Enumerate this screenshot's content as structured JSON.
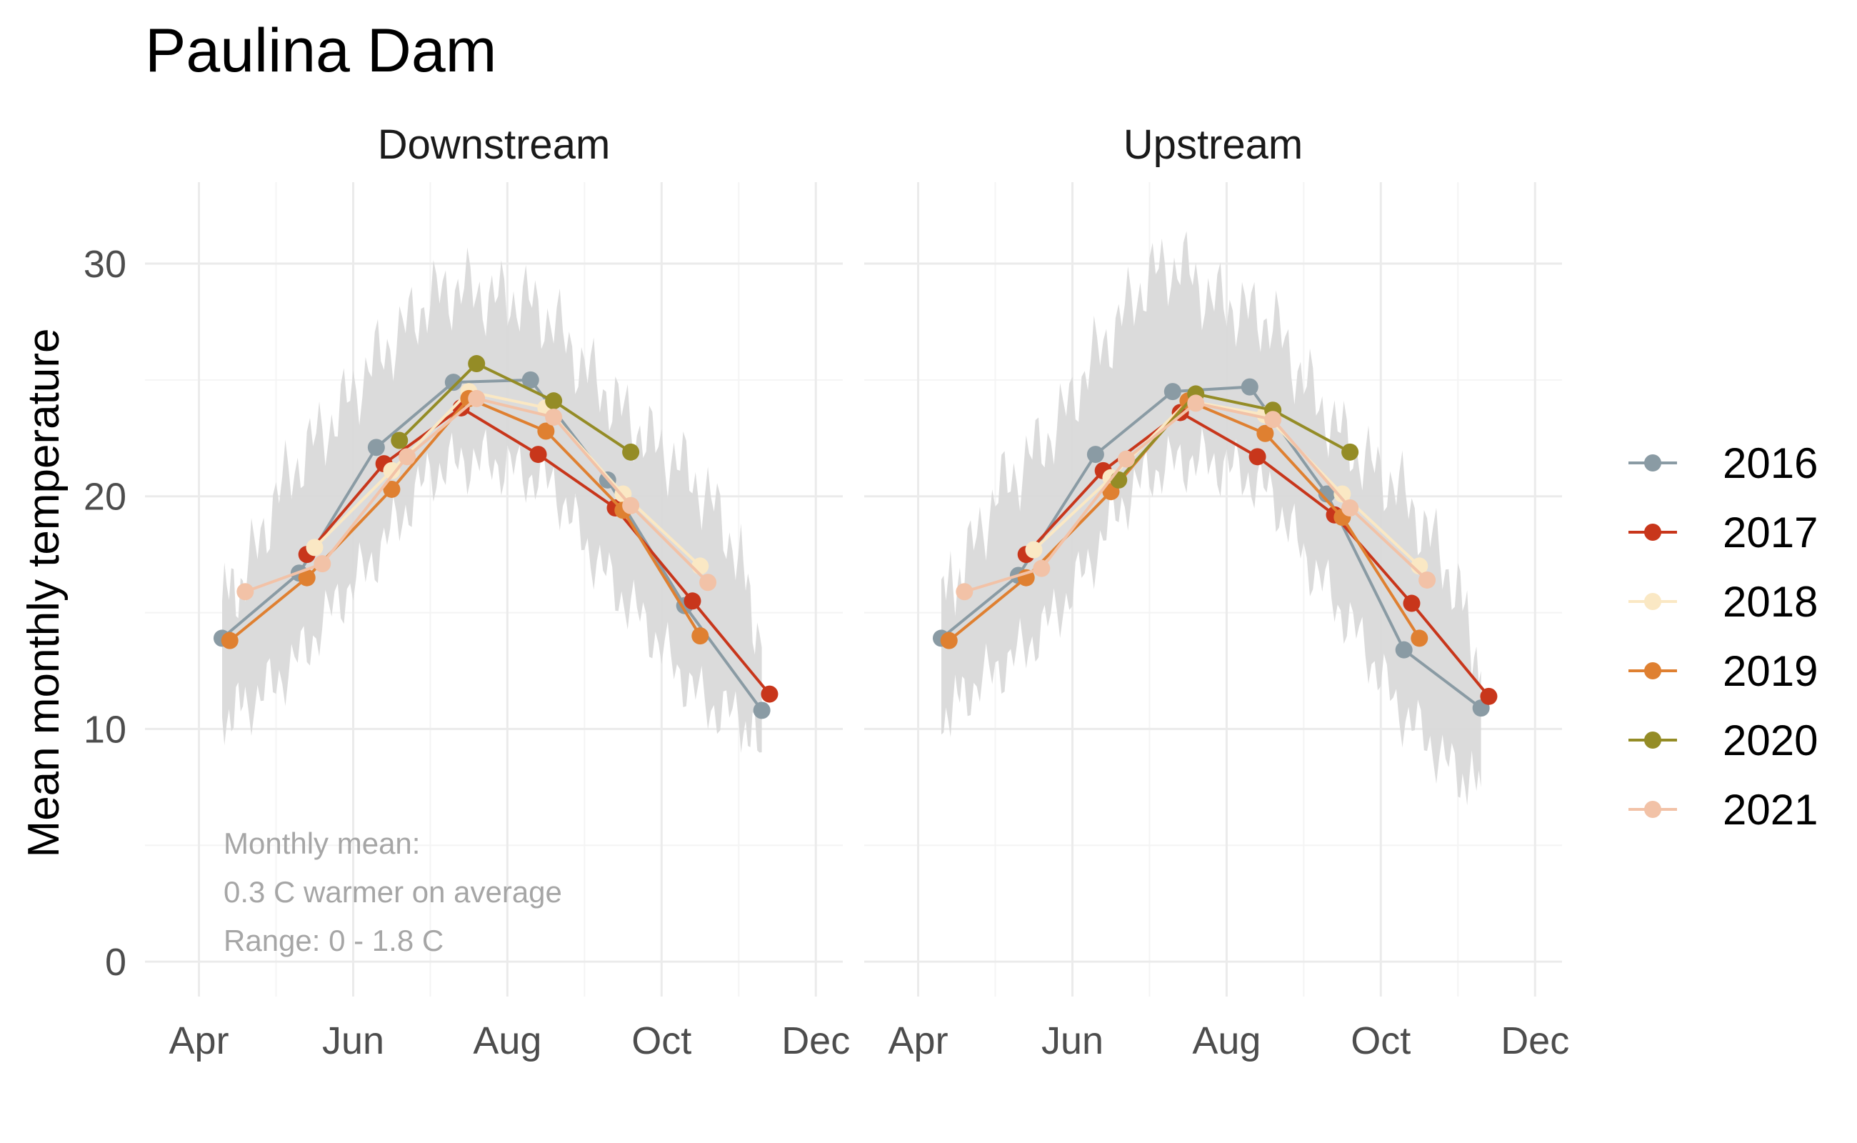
{
  "title": "Paulina Dam",
  "chart_data": {
    "type": "line",
    "title": "Paulina Dam",
    "ylabel": "Mean monthly temperature",
    "xlabel": "",
    "ylim": [
      -1.5,
      33.5
    ],
    "yticks": [
      0,
      10,
      20,
      30
    ],
    "xticks": [
      {
        "label": "Apr",
        "month": 4
      },
      {
        "label": "Jun",
        "month": 6
      },
      {
        "label": "Aug",
        "month": 8
      },
      {
        "label": "Oct",
        "month": 10
      },
      {
        "label": "Dec",
        "month": 12
      }
    ],
    "xlim_month": [
      3.3,
      12.35
    ],
    "legend": {
      "position": "right"
    },
    "colors": {
      "2016": "#8a9ba4",
      "2017": "#c8361b",
      "2018": "#fae8c4",
      "2019": "#df8031",
      "2020": "#948c26",
      "2021": "#f2c2a7"
    },
    "annotation": [
      "Monthly mean:",
      "0.3 C warmer on average",
      "Range: 0 - 1.8 C"
    ],
    "panels": [
      {
        "name": "Downstream",
        "ribbon": {
          "x": [
            4.3,
            4.6,
            5.0,
            5.4,
            5.8,
            6.2,
            6.6,
            7.0,
            7.4,
            7.8,
            8.2,
            8.6,
            9.0,
            9.4,
            9.8,
            10.2,
            10.6,
            11.0,
            11.3
          ],
          "lower": [
            10.5,
            11.0,
            12.0,
            13.5,
            15.5,
            17.0,
            19.0,
            21.0,
            21.5,
            21.5,
            21.0,
            20.5,
            18.0,
            16.0,
            14.5,
            12.5,
            11.0,
            10.5,
            9.0
          ],
          "upper": [
            15.5,
            16.5,
            20.0,
            22.0,
            23.5,
            25.5,
            27.0,
            28.5,
            29.0,
            28.5,
            28.5,
            27.5,
            25.5,
            24.0,
            22.5,
            21.5,
            20.0,
            17.5,
            13.5
          ]
        },
        "series": [
          {
            "name": "2016",
            "x": [
              4.3,
              5.3,
              6.3,
              7.3,
              8.3,
              9.3,
              10.3,
              11.3
            ],
            "y": [
              13.9,
              16.7,
              22.1,
              24.9,
              25.0,
              20.7,
              15.3,
              10.8
            ]
          },
          {
            "name": "2017",
            "x": [
              5.4,
              6.4,
              7.4,
              8.4,
              9.4,
              10.4,
              11.4
            ],
            "y": [
              17.5,
              21.4,
              23.8,
              21.8,
              19.5,
              15.5,
              11.5
            ]
          },
          {
            "name": "2018",
            "x": [
              5.5,
              6.5,
              7.5,
              8.5,
              9.5,
              10.5
            ],
            "y": [
              17.8,
              21.1,
              24.5,
              23.8,
              20.1,
              17.0
            ]
          },
          {
            "name": "2019",
            "x": [
              4.4,
              5.4,
              6.5,
              7.5,
              8.5,
              9.5,
              10.5
            ],
            "y": [
              13.8,
              16.5,
              20.3,
              24.2,
              22.8,
              19.4,
              14.0
            ]
          },
          {
            "name": "2020",
            "x": [
              6.6,
              7.6,
              8.6,
              9.6
            ],
            "y": [
              22.4,
              25.7,
              24.1,
              21.9
            ]
          },
          {
            "name": "2021",
            "x": [
              4.6,
              5.6,
              6.7,
              7.6,
              8.6,
              9.6,
              10.6
            ],
            "y": [
              15.9,
              17.1,
              21.7,
              24.2,
              23.4,
              19.6,
              16.3
            ]
          }
        ]
      },
      {
        "name": "Upstream",
        "ribbon": {
          "x": [
            4.3,
            4.6,
            5.0,
            5.4,
            5.8,
            6.2,
            6.6,
            7.0,
            7.4,
            7.8,
            8.2,
            8.6,
            9.0,
            9.4,
            9.8,
            10.2,
            10.6,
            11.0,
            11.3
          ],
          "lower": [
            10.5,
            11.5,
            12.5,
            13.5,
            15.0,
            17.0,
            19.5,
            21.0,
            21.5,
            21.5,
            21.0,
            20.0,
            17.5,
            15.5,
            13.5,
            11.0,
            9.5,
            8.0,
            7.5
          ],
          "upper": [
            15.5,
            17.0,
            20.0,
            21.5,
            23.0,
            25.5,
            27.5,
            29.5,
            30.0,
            28.5,
            28.0,
            27.5,
            25.0,
            23.0,
            21.5,
            20.5,
            18.5,
            16.0,
            12.5
          ]
        },
        "series": [
          {
            "name": "2016",
            "x": [
              4.3,
              5.3,
              6.3,
              7.3,
              8.3,
              9.3,
              10.3,
              11.3
            ],
            "y": [
              13.9,
              16.6,
              21.8,
              24.5,
              24.7,
              20.1,
              13.4,
              10.9
            ]
          },
          {
            "name": "2017",
            "x": [
              5.4,
              6.4,
              7.4,
              8.4,
              9.4,
              10.4,
              11.4
            ],
            "y": [
              17.5,
              21.1,
              23.6,
              21.7,
              19.2,
              15.4,
              11.4
            ]
          },
          {
            "name": "2018",
            "x": [
              5.5,
              6.5,
              7.5,
              8.5,
              9.5,
              10.5
            ],
            "y": [
              17.7,
              20.8,
              24.1,
              23.5,
              20.1,
              17.0
            ]
          },
          {
            "name": "2019",
            "x": [
              4.4,
              5.4,
              6.5,
              7.5,
              8.5,
              9.5,
              10.5
            ],
            "y": [
              13.8,
              16.5,
              20.2,
              24.1,
              22.7,
              19.1,
              13.9
            ]
          },
          {
            "name": "2020",
            "x": [
              6.6,
              7.6,
              8.6,
              9.6
            ],
            "y": [
              20.7,
              24.4,
              23.7,
              21.9
            ]
          },
          {
            "name": "2021",
            "x": [
              4.6,
              5.6,
              6.7,
              7.6,
              8.6,
              9.6,
              10.6
            ],
            "y": [
              15.9,
              16.9,
              21.6,
              24.0,
              23.3,
              19.5,
              16.4
            ]
          }
        ]
      }
    ]
  }
}
